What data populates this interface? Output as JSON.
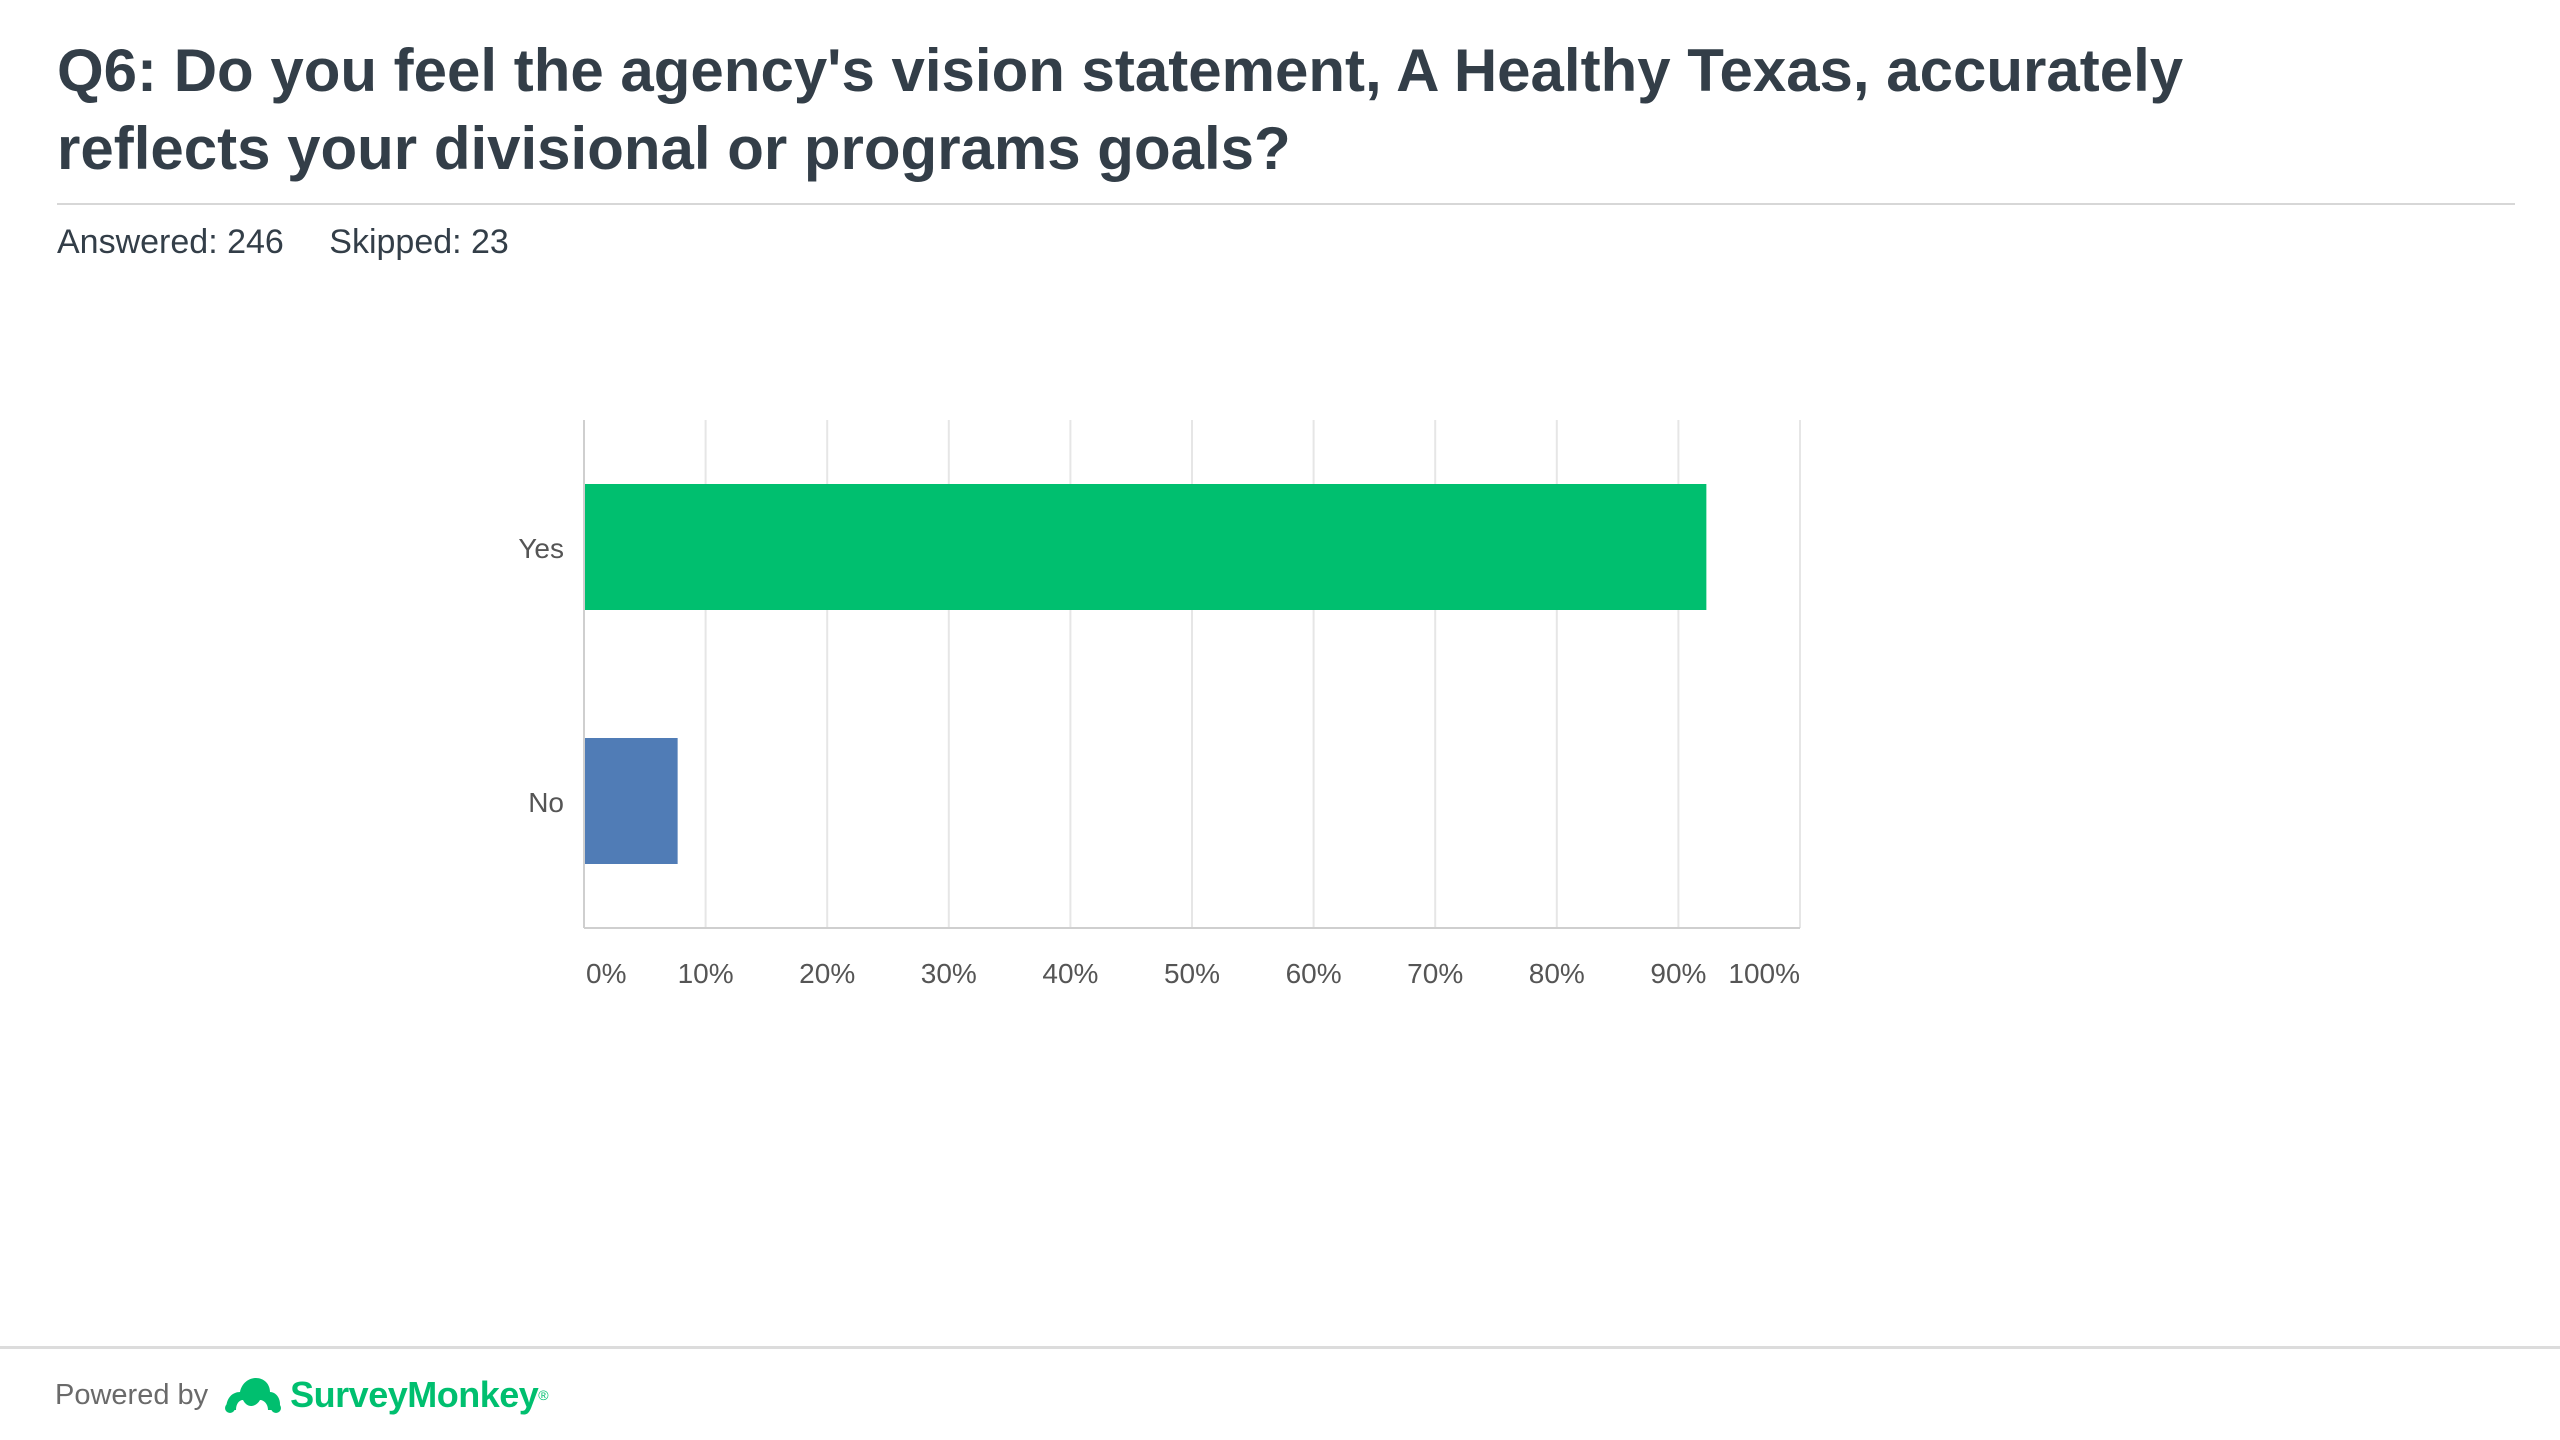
{
  "question": {
    "title": "Q6: Do you feel the agency's vision statement, A Healthy Texas, accurately reflects your divisional or programs goals?"
  },
  "stats": {
    "answered": "Answered: 246",
    "skipped": "Skipped: 23"
  },
  "chart_data": {
    "type": "bar",
    "orientation": "horizontal",
    "categories": [
      "Yes",
      "No"
    ],
    "values": [
      92.3,
      7.7
    ],
    "value_unit": "%",
    "xlim": [
      0,
      100
    ],
    "x_ticks": [
      "0%",
      "10%",
      "20%",
      "30%",
      "40%",
      "50%",
      "60%",
      "70%",
      "80%",
      "90%",
      "100%"
    ],
    "grid": true,
    "colors": [
      "#00bf6f",
      "#507cb6"
    ]
  },
  "footer": {
    "powered_by": "Powered by",
    "brand": "SurveyMonkey",
    "brand_mark": "®",
    "brand_icon": "surveymonkey-logo-icon"
  },
  "colors": {
    "title": "#333e48",
    "brand": "#00bf6f",
    "grid": "#e6e6e6",
    "axis": "#cfcfcf"
  }
}
